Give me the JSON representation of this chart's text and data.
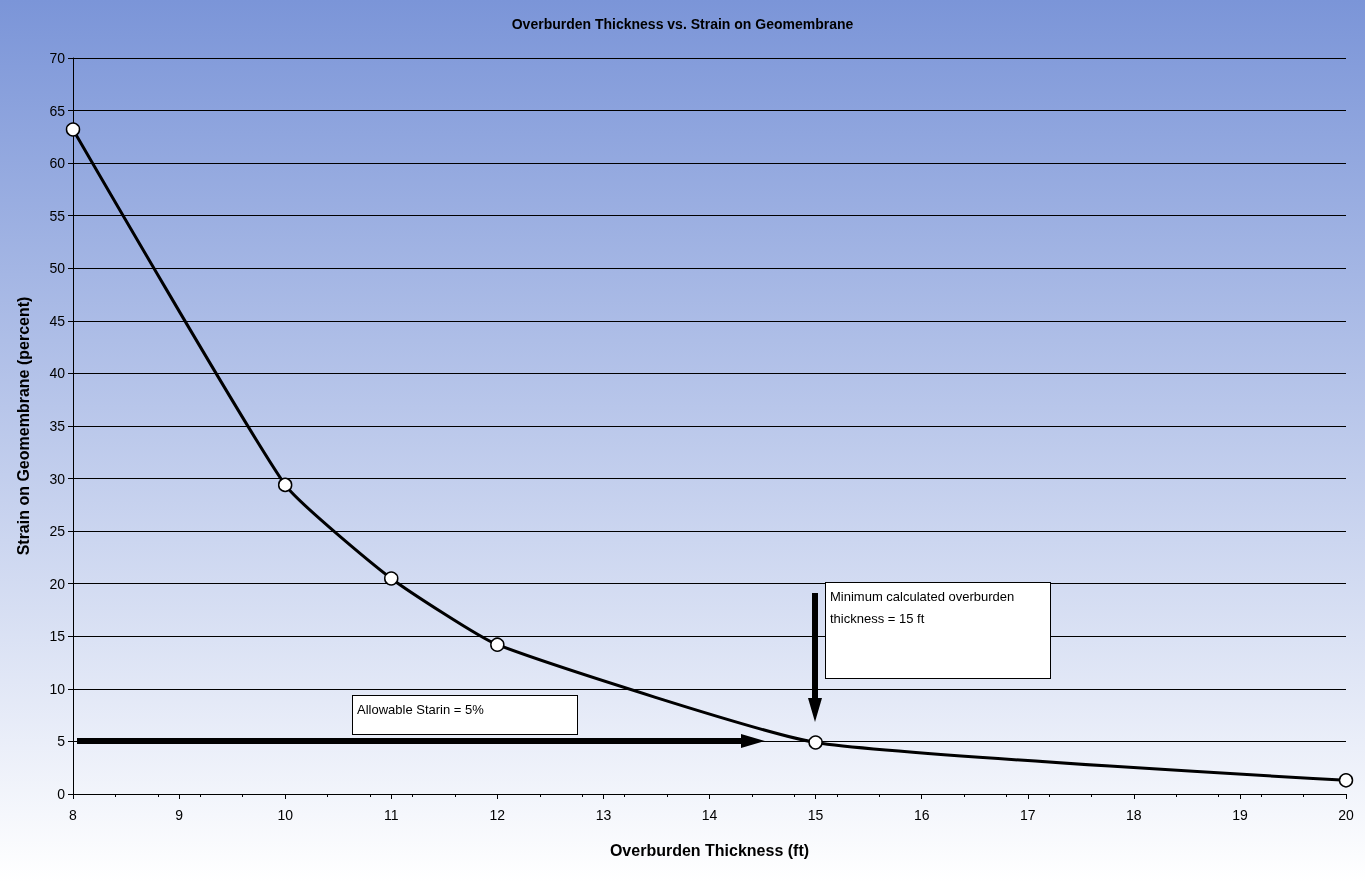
{
  "chart_data": {
    "type": "line",
    "title": "Overburden Thickness vs. Strain on Geomembrane",
    "xlabel": "Overburden Thickness (ft)",
    "ylabel": "Strain on Geomembrane (percent)",
    "x": [
      8,
      10,
      11,
      12,
      15,
      20
    ],
    "series": [
      {
        "color": "#000000",
        "values": [
          63.2,
          29.4,
          20.5,
          14.2,
          4.9,
          1.3
        ]
      }
    ],
    "xlim": [
      8,
      20
    ],
    "xticks": [
      8,
      9,
      10,
      11,
      12,
      13,
      14,
      15,
      16,
      17,
      18,
      19,
      20
    ],
    "ylim": [
      0,
      70
    ],
    "yticks": [
      0,
      5,
      10,
      15,
      20,
      25,
      30,
      35,
      40,
      45,
      50,
      55,
      60,
      65,
      70
    ],
    "grid": "y",
    "marker": "circle",
    "line_style": "solid",
    "annotations": [
      "Allowable Starin = 5%",
      "Minimum calculated overburden thickness = 15 ft"
    ]
  }
}
